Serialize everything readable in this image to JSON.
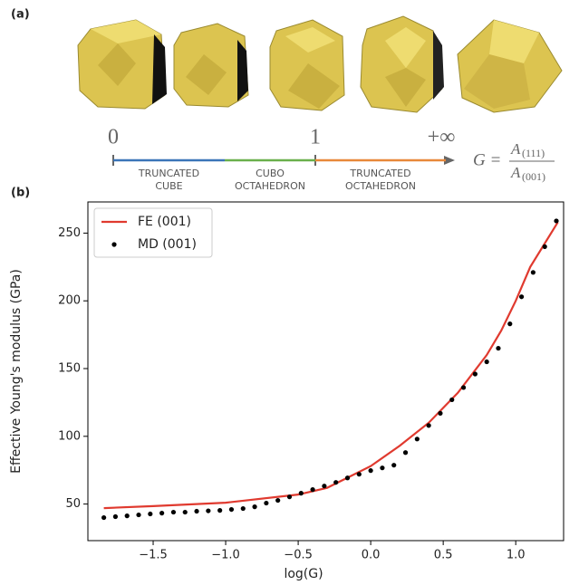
{
  "panel_a": {
    "label": "(a)",
    "scale": {
      "start": "0",
      "middle": "1",
      "end": "+∞",
      "segments": [
        {
          "lines": [
            "TRUNCATED",
            "CUBE"
          ],
          "color": "#3b75b8"
        },
        {
          "lines": [
            "CUBO",
            "OCTAHEDRON"
          ],
          "color": "#6ab04c"
        },
        {
          "lines": [
            "TRUNCATED",
            "OCTAHEDRON"
          ],
          "color": "#e8883a"
        }
      ]
    },
    "formula": {
      "lhs": "G =",
      "numerator": "A",
      "numerator_sub": "(111)",
      "denominator": "A",
      "denominator_sub": "(001)"
    }
  },
  "chart_data": {
    "type": "line",
    "label": "(b)",
    "x_label": "log(G)",
    "y_label": "Effective Young's modulus (GPa)",
    "xlim": [
      -1.95,
      1.33
    ],
    "ylim": [
      23,
      273
    ],
    "xticks": [
      {
        "value": -1.5,
        "label": "−1.5"
      },
      {
        "value": -1.0,
        "label": "−1.0"
      },
      {
        "value": -0.5,
        "label": "−0.5"
      },
      {
        "value": 0.0,
        "label": "0.0"
      },
      0.5,
      {
        "value": 1.0,
        "label": "1.0"
      }
    ],
    "yticks": [
      50,
      100,
      150,
      200,
      250
    ],
    "legend": "upper left",
    "series": [
      {
        "name": "FE (001)",
        "color": "#e03a2f",
        "style": "line",
        "x": [
          -1.84,
          -1.5,
          -1.0,
          -0.5,
          -0.3,
          0.0,
          0.2,
          0.4,
          0.6,
          0.8,
          0.9,
          1.0,
          1.1,
          1.29
        ],
        "values": [
          47,
          48.5,
          51,
          57,
          62,
          78,
          93,
          110,
          132,
          160,
          178,
          200,
          225,
          258
        ]
      },
      {
        "name": "MD (001)",
        "color": "#000000",
        "style": "points",
        "x": [
          -1.84,
          -1.76,
          -1.68,
          -1.6,
          -1.52,
          -1.44,
          -1.36,
          -1.28,
          -1.2,
          -1.12,
          -1.04,
          -0.96,
          -0.88,
          -0.8,
          -0.72,
          -0.64,
          -0.56,
          -0.48,
          -0.4,
          -0.32,
          -0.24,
          -0.16,
          -0.08,
          0,
          0.08,
          0.16,
          0.24,
          0.32,
          0.4,
          0.48,
          0.56,
          0.64,
          0.72,
          0.8,
          0.88,
          0.96,
          1.04,
          1.12,
          1.2,
          1.28
        ],
        "values": [
          40,
          40.7,
          41.3,
          42,
          42.7,
          43.3,
          44,
          44,
          44.7,
          45,
          45.3,
          46,
          46.7,
          48,
          50.7,
          52.7,
          55.3,
          58,
          60.7,
          63.3,
          66,
          69.3,
          72,
          74.7,
          76.7,
          78.7,
          88,
          98,
          108,
          117,
          127,
          136,
          146,
          155,
          165,
          183,
          203,
          221,
          240,
          259
        ]
      }
    ]
  }
}
